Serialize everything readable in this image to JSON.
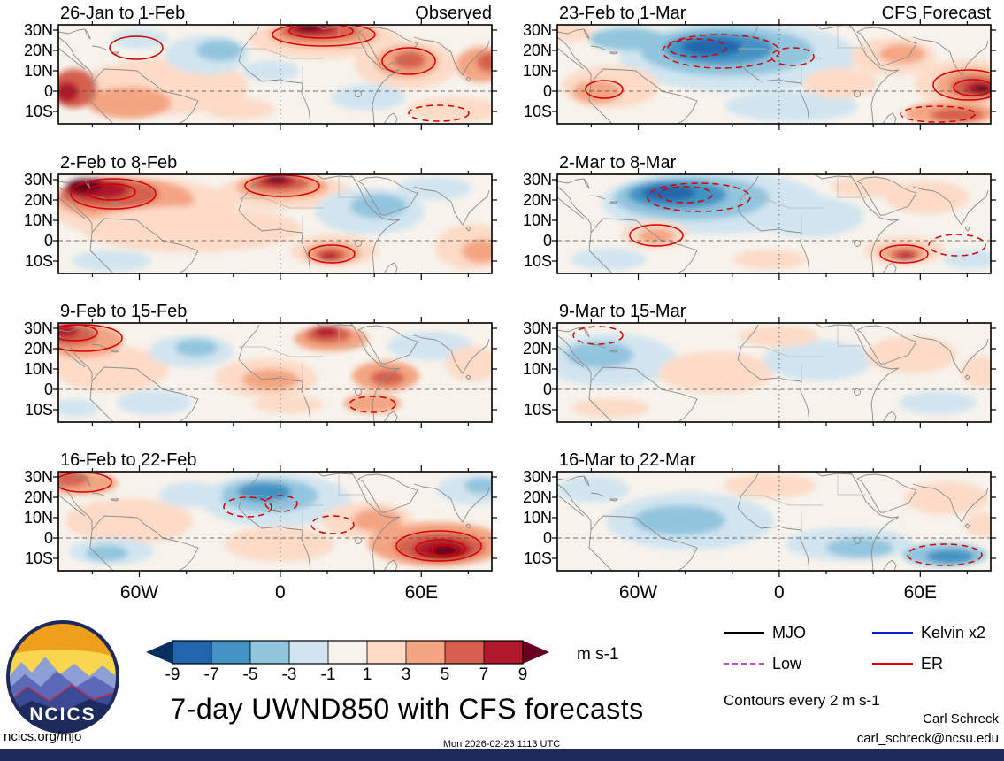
{
  "title": "7-day UWND850 with CFS forecasts",
  "meta": {
    "site": "ncics.org/mjo",
    "timestamp": "Mon 2026-02-23 1113 UTC",
    "credit_name": "Carl Schreck",
    "credit_email": "carl_schreck@ncsu.edu",
    "logo_text": "NCICS"
  },
  "legend": {
    "items": [
      {
        "label": "MJO",
        "color": "#000000",
        "style": "solid"
      },
      {
        "label": "Kelvin x2",
        "color": "#0020d0",
        "style": "solid"
      },
      {
        "label": "Low",
        "color": "#c050c8",
        "style": "dashed"
      },
      {
        "label": "ER",
        "color": "#e00000",
        "style": "solid"
      }
    ],
    "note": "Contours every 2 m s-1"
  },
  "colorbar": {
    "units": "m s-1",
    "tick_labels": [
      "-9",
      "-7",
      "-5",
      "-3",
      "-1",
      "1",
      "3",
      "5",
      "7",
      "9"
    ],
    "colors": [
      "#053061",
      "#2166ac",
      "#4393c3",
      "#92c5de",
      "#d1e5f0",
      "#f7f3ec",
      "#fddbc7",
      "#f4a582",
      "#d6604d",
      "#b2182b",
      "#67001f"
    ]
  },
  "axes": {
    "lat_labels": [
      "30N",
      "20N",
      "10N",
      "0",
      "10S"
    ],
    "lon_labels": [
      "60W",
      "0",
      "60E"
    ]
  },
  "chart_data": {
    "type": "heatmap",
    "variable": "850-hPa zonal wind anomaly (UWND850), 7-day means",
    "units": "m s-1",
    "contour_interval": 2,
    "shading_levels": [
      -9,
      -7,
      -5,
      -3,
      -1,
      1,
      3,
      5,
      7,
      9
    ],
    "lat_range": [
      "15S",
      "33N"
    ],
    "lon_range": [
      "95W",
      "90E"
    ],
    "columns": [
      "Observed",
      "CFS Forecast"
    ],
    "panels": [
      {
        "title": "26-Jan to 1-Feb",
        "corner": "Observed",
        "features": [
          [
            120,
            70,
            95,
            32,
            6
          ],
          [
            80,
            88,
            48,
            18,
            7
          ],
          [
            18,
            72,
            26,
            22,
            8
          ],
          [
            10,
            76,
            13,
            12,
            9
          ],
          [
            168,
            34,
            48,
            22,
            4
          ],
          [
            182,
            29,
            26,
            12,
            3
          ],
          [
            92,
            16,
            32,
            11,
            4
          ],
          [
            300,
            16,
            85,
            22,
            6
          ],
          [
            300,
            11,
            62,
            15,
            7
          ],
          [
            295,
            7,
            45,
            11,
            8
          ],
          [
            287,
            4,
            28,
            8,
            9
          ],
          [
            282,
            3,
            14,
            5,
            10
          ],
          [
            393,
            45,
            58,
            28,
            6
          ],
          [
            394,
            42,
            36,
            18,
            7
          ],
          [
            397,
            40,
            18,
            10,
            8
          ],
          [
            350,
            82,
            42,
            15,
            4
          ],
          [
            240,
            52,
            32,
            12,
            4
          ],
          [
            478,
            45,
            28,
            20,
            7
          ],
          [
            487,
            42,
            14,
            11,
            8
          ],
          [
            450,
            96,
            55,
            14,
            6
          ],
          [
            205,
            95,
            40,
            12,
            6
          ]
        ],
        "contours": [
          [
            88,
            26,
            30,
            13,
            0
          ],
          [
            300,
            11,
            58,
            13,
            0
          ],
          [
            297,
            7,
            36,
            8,
            0
          ],
          [
            396,
            41,
            30,
            15,
            0
          ],
          [
            430,
            100,
            34,
            9,
            1
          ]
        ]
      },
      {
        "title": "2-Feb to 8-Feb",
        "features": [
          [
            95,
            38,
            105,
            34,
            6
          ],
          [
            75,
            28,
            78,
            24,
            7
          ],
          [
            58,
            22,
            56,
            17,
            8
          ],
          [
            44,
            17,
            36,
            12,
            9
          ],
          [
            30,
            13,
            20,
            8,
            10
          ],
          [
            255,
            20,
            75,
            20,
            6
          ],
          [
            253,
            14,
            52,
            14,
            7
          ],
          [
            250,
            10,
            34,
            10,
            8
          ],
          [
            248,
            7,
            20,
            7,
            9
          ],
          [
            247,
            5,
            11,
            4,
            10
          ],
          [
            150,
            62,
            125,
            26,
            6
          ],
          [
            352,
            42,
            62,
            26,
            4
          ],
          [
            362,
            36,
            32,
            14,
            3
          ],
          [
            425,
            16,
            42,
            13,
            4
          ],
          [
            312,
            86,
            50,
            18,
            6
          ],
          [
            310,
            89,
            32,
            12,
            7
          ],
          [
            308,
            91,
            18,
            8,
            8
          ],
          [
            306,
            93,
            10,
            5,
            9
          ],
          [
            468,
            82,
            42,
            26,
            6
          ],
          [
            478,
            87,
            22,
            13,
            7
          ],
          [
            60,
            98,
            45,
            12,
            4
          ]
        ],
        "contours": [
          [
            62,
            22,
            48,
            17,
            0
          ],
          [
            60,
            20,
            27,
            9,
            0
          ],
          [
            253,
            13,
            42,
            12,
            0
          ],
          [
            309,
            90,
            26,
            10,
            0
          ]
        ]
      },
      {
        "title": "9-Feb to 15-Feb",
        "features": [
          [
            60,
            52,
            65,
            26,
            6
          ],
          [
            25,
            20,
            48,
            19,
            7
          ],
          [
            14,
            14,
            30,
            12,
            8
          ],
          [
            7,
            9,
            16,
            8,
            9
          ],
          [
            150,
            32,
            48,
            18,
            4
          ],
          [
            156,
            28,
            24,
            10,
            3
          ],
          [
            108,
            90,
            42,
            14,
            4
          ],
          [
            308,
            18,
            42,
            14,
            7
          ],
          [
            305,
            13,
            26,
            10,
            8
          ],
          [
            303,
            10,
            14,
            6,
            9
          ],
          [
            235,
            62,
            58,
            22,
            6
          ],
          [
            240,
            64,
            32,
            12,
            7
          ],
          [
            370,
            60,
            38,
            17,
            7
          ],
          [
            372,
            62,
            19,
            9,
            8
          ],
          [
            420,
            26,
            48,
            16,
            4
          ],
          [
            468,
            46,
            30,
            20,
            6
          ],
          [
            355,
            91,
            32,
            11,
            7
          ],
          [
            20,
            96,
            26,
            10,
            4
          ],
          [
            260,
            92,
            40,
            10,
            6
          ]
        ],
        "contours": [
          [
            28,
            17,
            44,
            15,
            0
          ],
          [
            18,
            11,
            26,
            9,
            0
          ],
          [
            355,
            92,
            26,
            9,
            1
          ]
        ]
      },
      {
        "title": "16-Feb to 22-Feb",
        "features": [
          [
            245,
            32,
            85,
            30,
            4
          ],
          [
            238,
            27,
            56,
            19,
            3
          ],
          [
            233,
            23,
            30,
            11,
            2
          ],
          [
            25,
            13,
            42,
            13,
            7
          ],
          [
            12,
            8,
            22,
            9,
            8
          ],
          [
            80,
            56,
            72,
            26,
            6
          ],
          [
            60,
            90,
            48,
            15,
            4
          ],
          [
            55,
            92,
            24,
            9,
            3
          ],
          [
            250,
            82,
            62,
            20,
            6
          ],
          [
            350,
            56,
            52,
            21,
            6
          ],
          [
            360,
            55,
            28,
            13,
            7
          ],
          [
            428,
            82,
            78,
            25,
            7
          ],
          [
            431,
            85,
            52,
            17,
            8
          ],
          [
            434,
            88,
            33,
            12,
            9
          ],
          [
            437,
            90,
            17,
            7,
            10
          ],
          [
            470,
            20,
            42,
            17,
            4
          ],
          [
            480,
            16,
            21,
            9,
            3
          ],
          [
            150,
            26,
            36,
            14,
            4
          ]
        ],
        "contours": [
          [
            28,
            12,
            32,
            11,
            0
          ],
          [
            214,
            40,
            27,
            11,
            1
          ],
          [
            252,
            36,
            18,
            9,
            1
          ],
          [
            310,
            60,
            24,
            10,
            1
          ],
          [
            430,
            84,
            48,
            17,
            0
          ],
          [
            432,
            87,
            28,
            10,
            0
          ],
          [
            436,
            89,
            14,
            6,
            0
          ]
        ]
      },
      {
        "title": "23-Feb to 1-Mar",
        "corner": "CFS Forecast",
        "features": [
          [
            205,
            36,
            135,
            40,
            4
          ],
          [
            192,
            30,
            98,
            28,
            3
          ],
          [
            183,
            27,
            62,
            18,
            2
          ],
          [
            175,
            25,
            34,
            10,
            1
          ],
          [
            80,
            16,
            44,
            13,
            3
          ],
          [
            60,
            70,
            55,
            24,
            6
          ],
          [
            45,
            76,
            28,
            13,
            7
          ],
          [
            15,
            8,
            26,
            11,
            6
          ],
          [
            265,
            92,
            75,
            17,
            4
          ],
          [
            380,
            36,
            48,
            21,
            6
          ],
          [
            390,
            33,
            26,
            11,
            7
          ],
          [
            462,
            66,
            58,
            27,
            6
          ],
          [
            467,
            68,
            40,
            19,
            7
          ],
          [
            472,
            70,
            28,
            13,
            8
          ],
          [
            477,
            72,
            17,
            8,
            9
          ],
          [
            481,
            73,
            9,
            5,
            10
          ],
          [
            445,
            100,
            52,
            13,
            7
          ],
          [
            452,
            102,
            30,
            8,
            8
          ],
          [
            320,
            66,
            42,
            17,
            6
          ]
        ],
        "contours": [
          [
            185,
            30,
            66,
            19,
            1
          ],
          [
            158,
            26,
            33,
            10,
            1
          ],
          [
            266,
            36,
            24,
            10,
            1
          ],
          [
            465,
            68,
            40,
            17,
            0
          ],
          [
            470,
            71,
            22,
            9,
            0
          ],
          [
            430,
            101,
            42,
            9,
            1
          ],
          [
            53,
            73,
            21,
            10,
            0
          ]
        ]
      },
      {
        "title": "2-Mar to 8-Mar",
        "features": [
          [
            175,
            32,
            125,
            36,
            4
          ],
          [
            152,
            27,
            88,
            25,
            3
          ],
          [
            136,
            23,
            56,
            16,
            2
          ],
          [
            126,
            21,
            30,
            9,
            1
          ],
          [
            285,
            48,
            62,
            23,
            4
          ],
          [
            110,
            68,
            38,
            16,
            6
          ],
          [
            112,
            70,
            20,
            9,
            7
          ],
          [
            418,
            26,
            48,
            19,
            6
          ],
          [
            392,
            86,
            46,
            16,
            6
          ],
          [
            391,
            89,
            28,
            10,
            7
          ],
          [
            393,
            91,
            16,
            7,
            8
          ],
          [
            394,
            93,
            9,
            4,
            9
          ],
          [
            468,
            96,
            32,
            11,
            4
          ],
          [
            58,
            96,
            42,
            12,
            4
          ],
          [
            240,
            96,
            42,
            11,
            6
          ],
          [
            350,
            14,
            40,
            12,
            6
          ]
        ],
        "contours": [
          [
            160,
            26,
            58,
            16,
            1
          ],
          [
            145,
            23,
            30,
            9,
            1
          ],
          [
            112,
            69,
            30,
            12,
            0
          ],
          [
            392,
            90,
            27,
            10,
            0
          ],
          [
            452,
            80,
            32,
            12,
            1
          ]
        ]
      },
      {
        "title": "9-Mar to 15-Mar",
        "features": [
          [
            60,
            42,
            75,
            30,
            4
          ],
          [
            48,
            36,
            38,
            15,
            3
          ],
          [
            180,
            56,
            65,
            24,
            6
          ],
          [
            295,
            42,
            62,
            23,
            4
          ],
          [
            400,
            36,
            52,
            21,
            6
          ],
          [
            430,
            90,
            44,
            13,
            4
          ],
          [
            60,
            96,
            44,
            11,
            6
          ],
          [
            250,
            15,
            45,
            12,
            6
          ],
          [
            480,
            55,
            25,
            18,
            6
          ]
        ],
        "contours": [
          [
            46,
            14,
            28,
            10,
            1
          ]
        ]
      },
      {
        "title": "16-Mar to 22-Mar",
        "features": [
          [
            150,
            56,
            95,
            32,
            4
          ],
          [
            138,
            55,
            52,
            17,
            3
          ],
          [
            240,
            16,
            52,
            14,
            6
          ],
          [
            330,
            82,
            72,
            19,
            4
          ],
          [
            342,
            86,
            38,
            11,
            3
          ],
          [
            438,
            94,
            48,
            13,
            3
          ],
          [
            444,
            96,
            27,
            8,
            2
          ],
          [
            440,
            30,
            48,
            19,
            6
          ],
          [
            40,
            20,
            42,
            15,
            4
          ],
          [
            480,
            60,
            20,
            14,
            6
          ]
        ],
        "contours": [
          [
            438,
            94,
            42,
            12,
            1
          ]
        ]
      }
    ]
  }
}
